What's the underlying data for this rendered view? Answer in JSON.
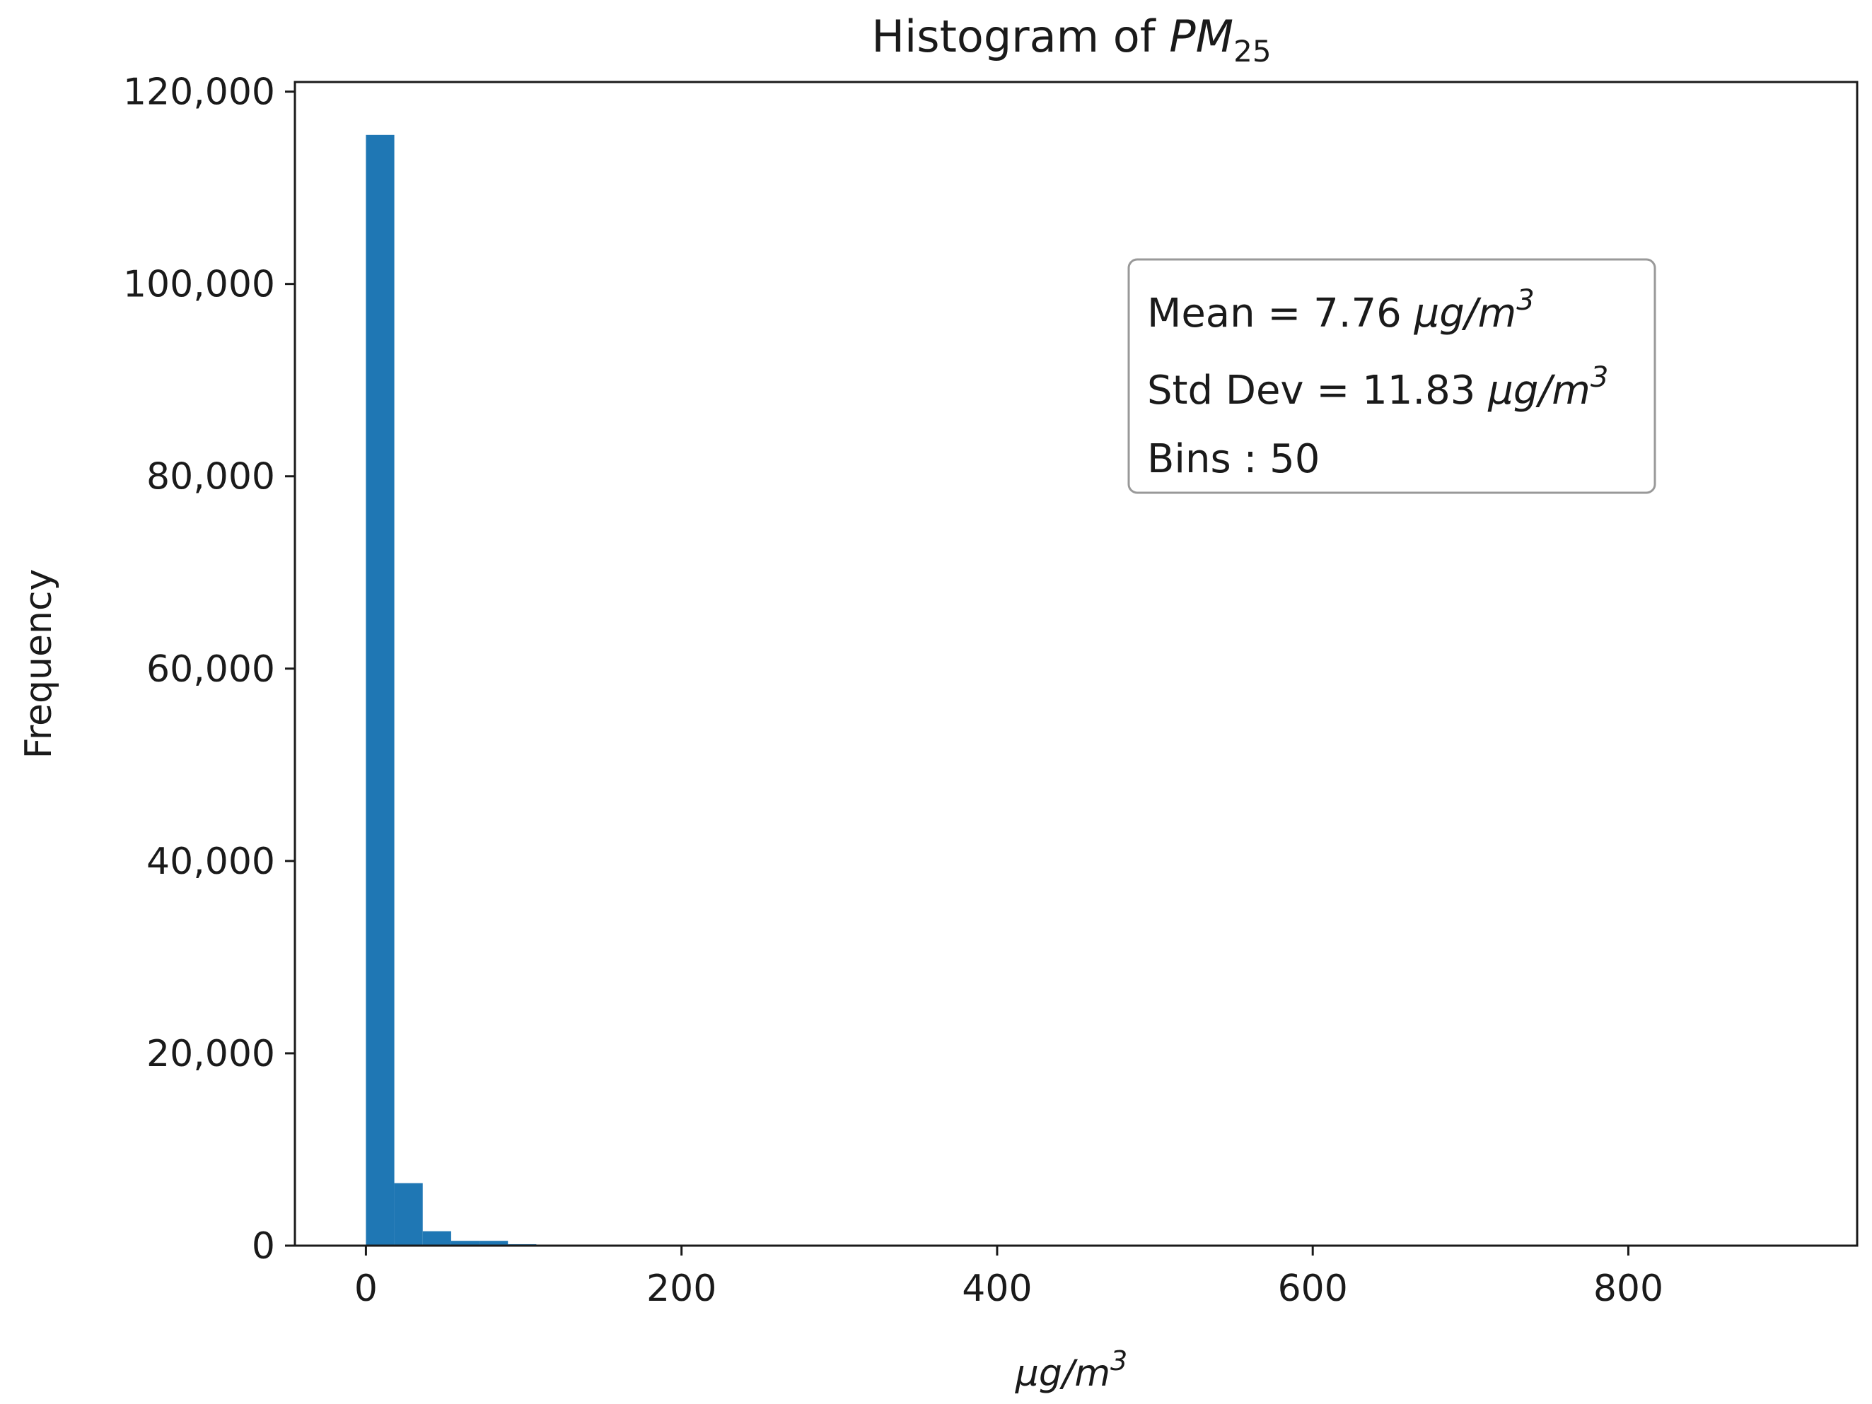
{
  "chart_data": {
    "type": "bar",
    "title": {
      "prefix": "Histogram of ",
      "symbol": "PM",
      "subscript": "25"
    },
    "xlabel": {
      "main": "μg/m",
      "sup": "3"
    },
    "ylabel": "Frequency",
    "xlim": [
      -45,
      945
    ],
    "ylim": [
      0,
      121000
    ],
    "x_ticks": [
      0,
      200,
      400,
      600,
      800
    ],
    "x_tick_labels": [
      "0",
      "200",
      "400",
      "600",
      "800"
    ],
    "y_ticks": [
      0,
      20000,
      40000,
      60000,
      80000,
      100000,
      120000
    ],
    "y_tick_labels": [
      "0",
      "20,000",
      "40,000",
      "60,000",
      "80,000",
      "100,000",
      "120,000"
    ],
    "bar_color": "#1f77b4",
    "bins": [
      {
        "x0": 0,
        "x1": 18,
        "value": 115500
      },
      {
        "x0": 18,
        "x1": 36,
        "value": 6500
      },
      {
        "x0": 36,
        "x1": 54,
        "value": 1500
      },
      {
        "x0": 54,
        "x1": 72,
        "value": 500
      },
      {
        "x0": 72,
        "x1": 90,
        "value": 500
      },
      {
        "x0": 90,
        "x1": 108,
        "value": 150
      },
      {
        "x0": 108,
        "x1": 126,
        "value": 80
      },
      {
        "x0": 126,
        "x1": 144,
        "value": 40
      },
      {
        "x0": 144,
        "x1": 162,
        "value": 20
      }
    ],
    "annotation": {
      "lines": [
        {
          "label": "Mean",
          "sep": "=",
          "value": "7.76",
          "unit": "μg/m",
          "sup": "3"
        },
        {
          "label": "Std Dev",
          "sep": "=",
          "value": "11.83",
          "unit": "μg/m",
          "sup": "3"
        },
        {
          "label": "Bins",
          "sep": ":",
          "value": "50",
          "unit": "",
          "sup": ""
        }
      ]
    }
  }
}
